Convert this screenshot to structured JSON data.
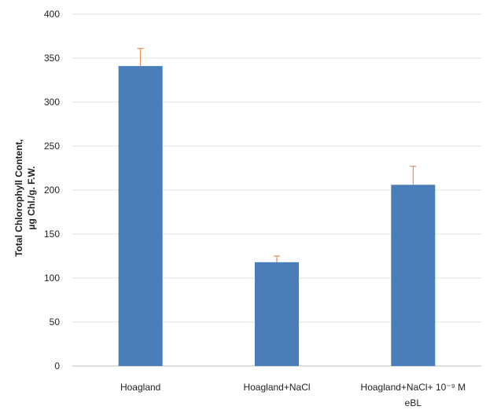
{
  "chart_data": {
    "type": "bar",
    "categories": [
      "Hoagland",
      "Hoagland+NaCl",
      "Hoagland+NaCl+ 10⁻⁹ M eBL"
    ],
    "category_lines": [
      [
        "Hoagland"
      ],
      [
        "Hoagland+NaCl"
      ],
      [
        "Hoagland+NaCl+ 10⁻⁹ M",
        "eBL"
      ]
    ],
    "values": [
      341,
      118,
      206
    ],
    "error_upper": [
      20,
      7,
      21
    ],
    "ylabel_lines": [
      "Total Chlorophyll Content,",
      "µg Chl./g. F.W."
    ],
    "xlabel": "",
    "title": "",
    "ylim": [
      0,
      400
    ],
    "yticks": [
      0,
      50,
      100,
      150,
      200,
      250,
      300,
      350,
      400
    ],
    "grid": true,
    "legend": "none",
    "colors": {
      "bar": "#4a7ebb",
      "error_bar": "#e07a3a",
      "grid": "#e3e3e3"
    }
  }
}
